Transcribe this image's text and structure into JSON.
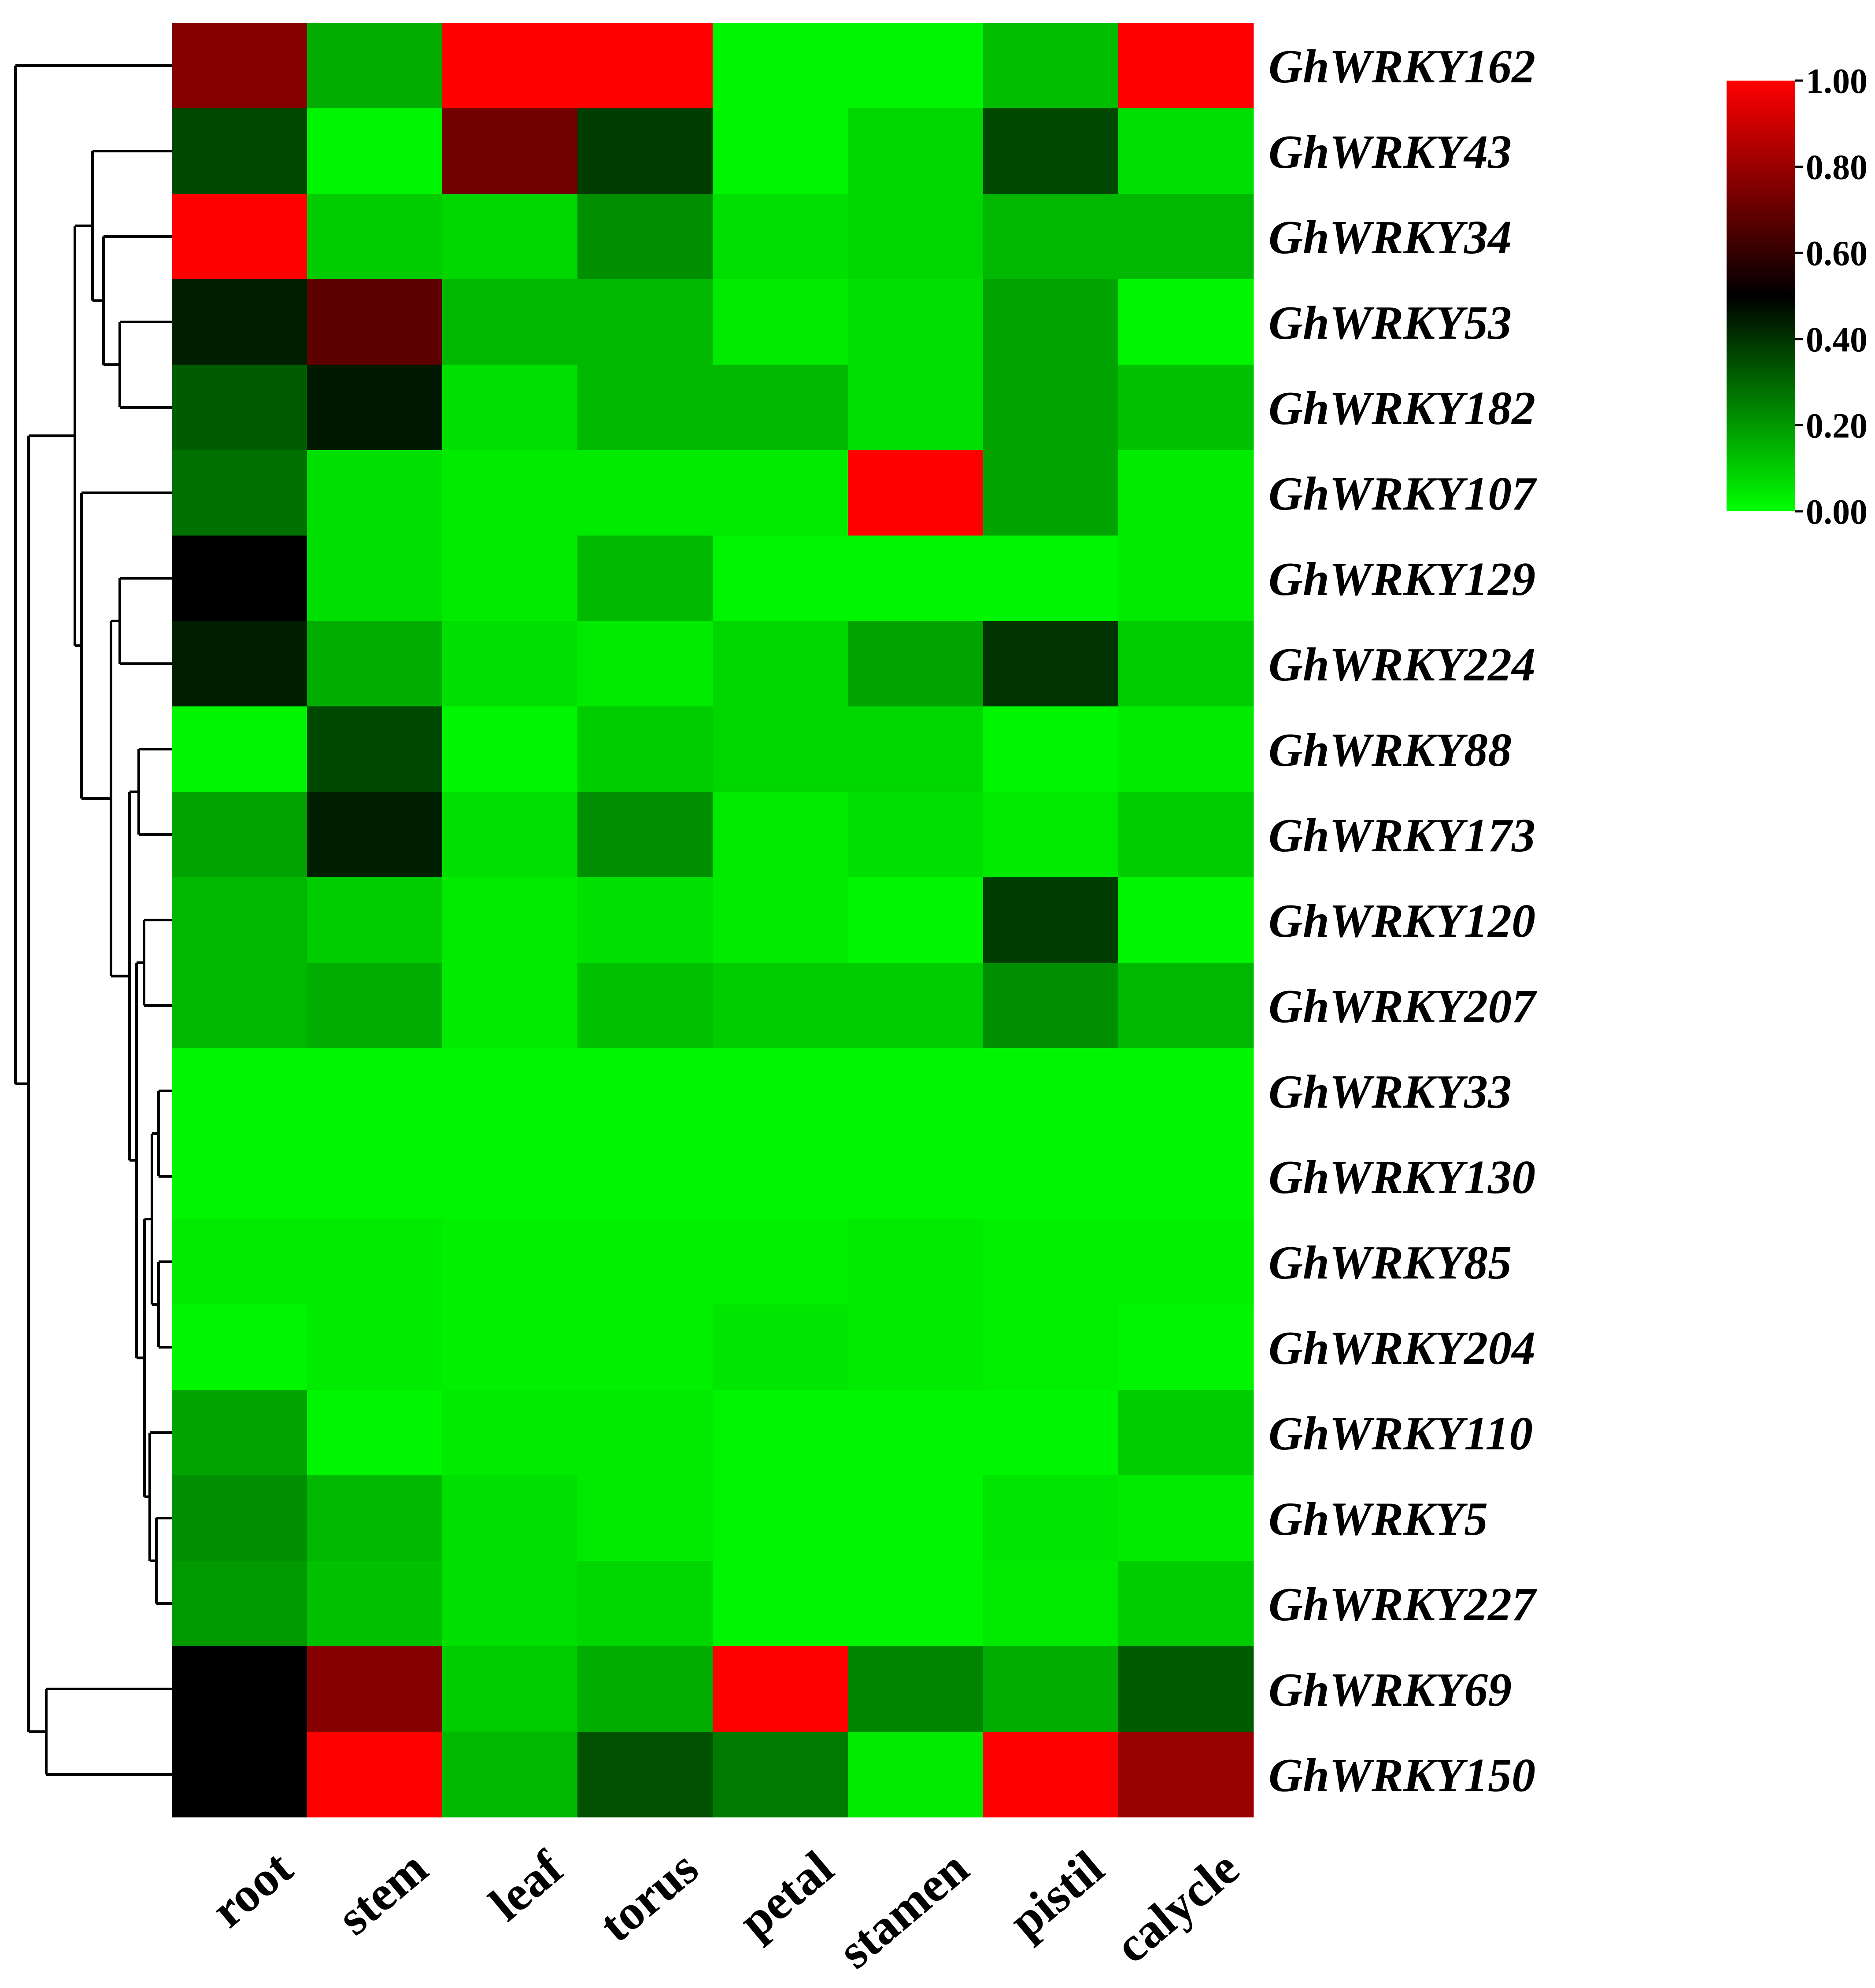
{
  "chart_data": {
    "type": "heatmap",
    "title": "",
    "xlabel": "",
    "ylabel": "",
    "columns": [
      "root",
      "stem",
      "leaf",
      "torus",
      "petal",
      "stamen",
      "pistil",
      "calycle"
    ],
    "rows": [
      "GhWRKY162",
      "GhWRKY43",
      "GhWRKY34",
      "GhWRKY53",
      "GhWRKY182",
      "GhWRKY107",
      "GhWRKY129",
      "GhWRKY224",
      "GhWRKY88",
      "GhWRKY173",
      "GhWRKY120",
      "GhWRKY207",
      "GhWRKY33",
      "GhWRKY130",
      "GhWRKY85",
      "GhWRKY204",
      "GhWRKY110",
      "GhWRKY5",
      "GhWRKY227",
      "GhWRKY69",
      "GhWRKY150"
    ],
    "values": [
      [
        0.76,
        0.16,
        1.0,
        1.0,
        0.02,
        0.02,
        0.13,
        1.0
      ],
      [
        0.36,
        0.02,
        0.72,
        0.38,
        0.02,
        0.08,
        0.36,
        0.06
      ],
      [
        1.0,
        0.1,
        0.08,
        0.22,
        0.06,
        0.08,
        0.14,
        0.14
      ],
      [
        0.44,
        0.68,
        0.14,
        0.14,
        0.04,
        0.06,
        0.18,
        0.02
      ],
      [
        0.32,
        0.45,
        0.06,
        0.14,
        0.14,
        0.06,
        0.18,
        0.12
      ],
      [
        0.28,
        0.06,
        0.04,
        0.04,
        0.04,
        1.0,
        0.18,
        0.04
      ],
      [
        0.5,
        0.06,
        0.04,
        0.14,
        0.02,
        0.02,
        0.02,
        0.04
      ],
      [
        0.44,
        0.16,
        0.06,
        0.04,
        0.08,
        0.18,
        0.4,
        0.1
      ],
      [
        0.02,
        0.36,
        0.02,
        0.1,
        0.08,
        0.08,
        0.02,
        0.04
      ],
      [
        0.18,
        0.44,
        0.06,
        0.22,
        0.04,
        0.06,
        0.04,
        0.1
      ],
      [
        0.14,
        0.1,
        0.04,
        0.06,
        0.04,
        0.02,
        0.38,
        0.02
      ],
      [
        0.14,
        0.16,
        0.04,
        0.12,
        0.1,
        0.1,
        0.22,
        0.14
      ],
      [
        0.02,
        0.02,
        0.02,
        0.02,
        0.02,
        0.02,
        0.02,
        0.02
      ],
      [
        0.02,
        0.02,
        0.02,
        0.02,
        0.02,
        0.02,
        0.02,
        0.02
      ],
      [
        0.04,
        0.04,
        0.03,
        0.03,
        0.03,
        0.04,
        0.03,
        0.03
      ],
      [
        0.02,
        0.04,
        0.03,
        0.03,
        0.05,
        0.04,
        0.03,
        0.02
      ],
      [
        0.18,
        0.02,
        0.04,
        0.04,
        0.02,
        0.02,
        0.02,
        0.1
      ],
      [
        0.22,
        0.14,
        0.06,
        0.04,
        0.02,
        0.02,
        0.05,
        0.04
      ],
      [
        0.2,
        0.12,
        0.06,
        0.08,
        0.02,
        0.02,
        0.04,
        0.1
      ],
      [
        0.5,
        0.76,
        0.1,
        0.16,
        1.0,
        0.24,
        0.16,
        0.32
      ],
      [
        0.5,
        1.0,
        0.14,
        0.34,
        0.26,
        0.04,
        1.0,
        0.8
      ]
    ],
    "colorbar": {
      "min": 0,
      "max": 1,
      "ticks": [
        "1.00",
        "0.80",
        "0.60",
        "0.40",
        "0.20",
        "0.00"
      ],
      "colors": [
        "#00ff00",
        "#000000",
        "#ff0000"
      ]
    },
    "dendrogram": {
      "side": "left",
      "clusters": "rows"
    }
  }
}
